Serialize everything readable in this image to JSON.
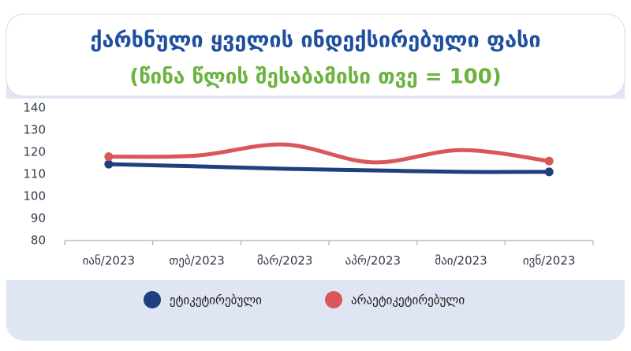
{
  "chart_data": {
    "type": "line",
    "title": "ქარხნული ყველის ინდექსირებული ფასი",
    "subtitle": "(წინა წლის შესაბამისი თვე = 100)",
    "categories": [
      "იან/2023",
      "თებ/2023",
      "მარ/2023",
      "აპრ/2023",
      "მაი/2023",
      "ივნ/2023"
    ],
    "series": [
      {
        "name": "ეტიკეტირებული",
        "color": "#1f3f7e",
        "values": [
          114.6,
          113.6,
          112.5,
          111.8,
          111.1,
          111.1
        ]
      },
      {
        "name": "არაეტიკეტირებული",
        "color": "#d9575b",
        "values": [
          118,
          118.5,
          123.5,
          115.4,
          121,
          116
        ]
      }
    ],
    "ylim": [
      80,
      140
    ],
    "yticks": [
      80,
      90,
      100,
      110,
      120,
      130,
      140
    ]
  }
}
